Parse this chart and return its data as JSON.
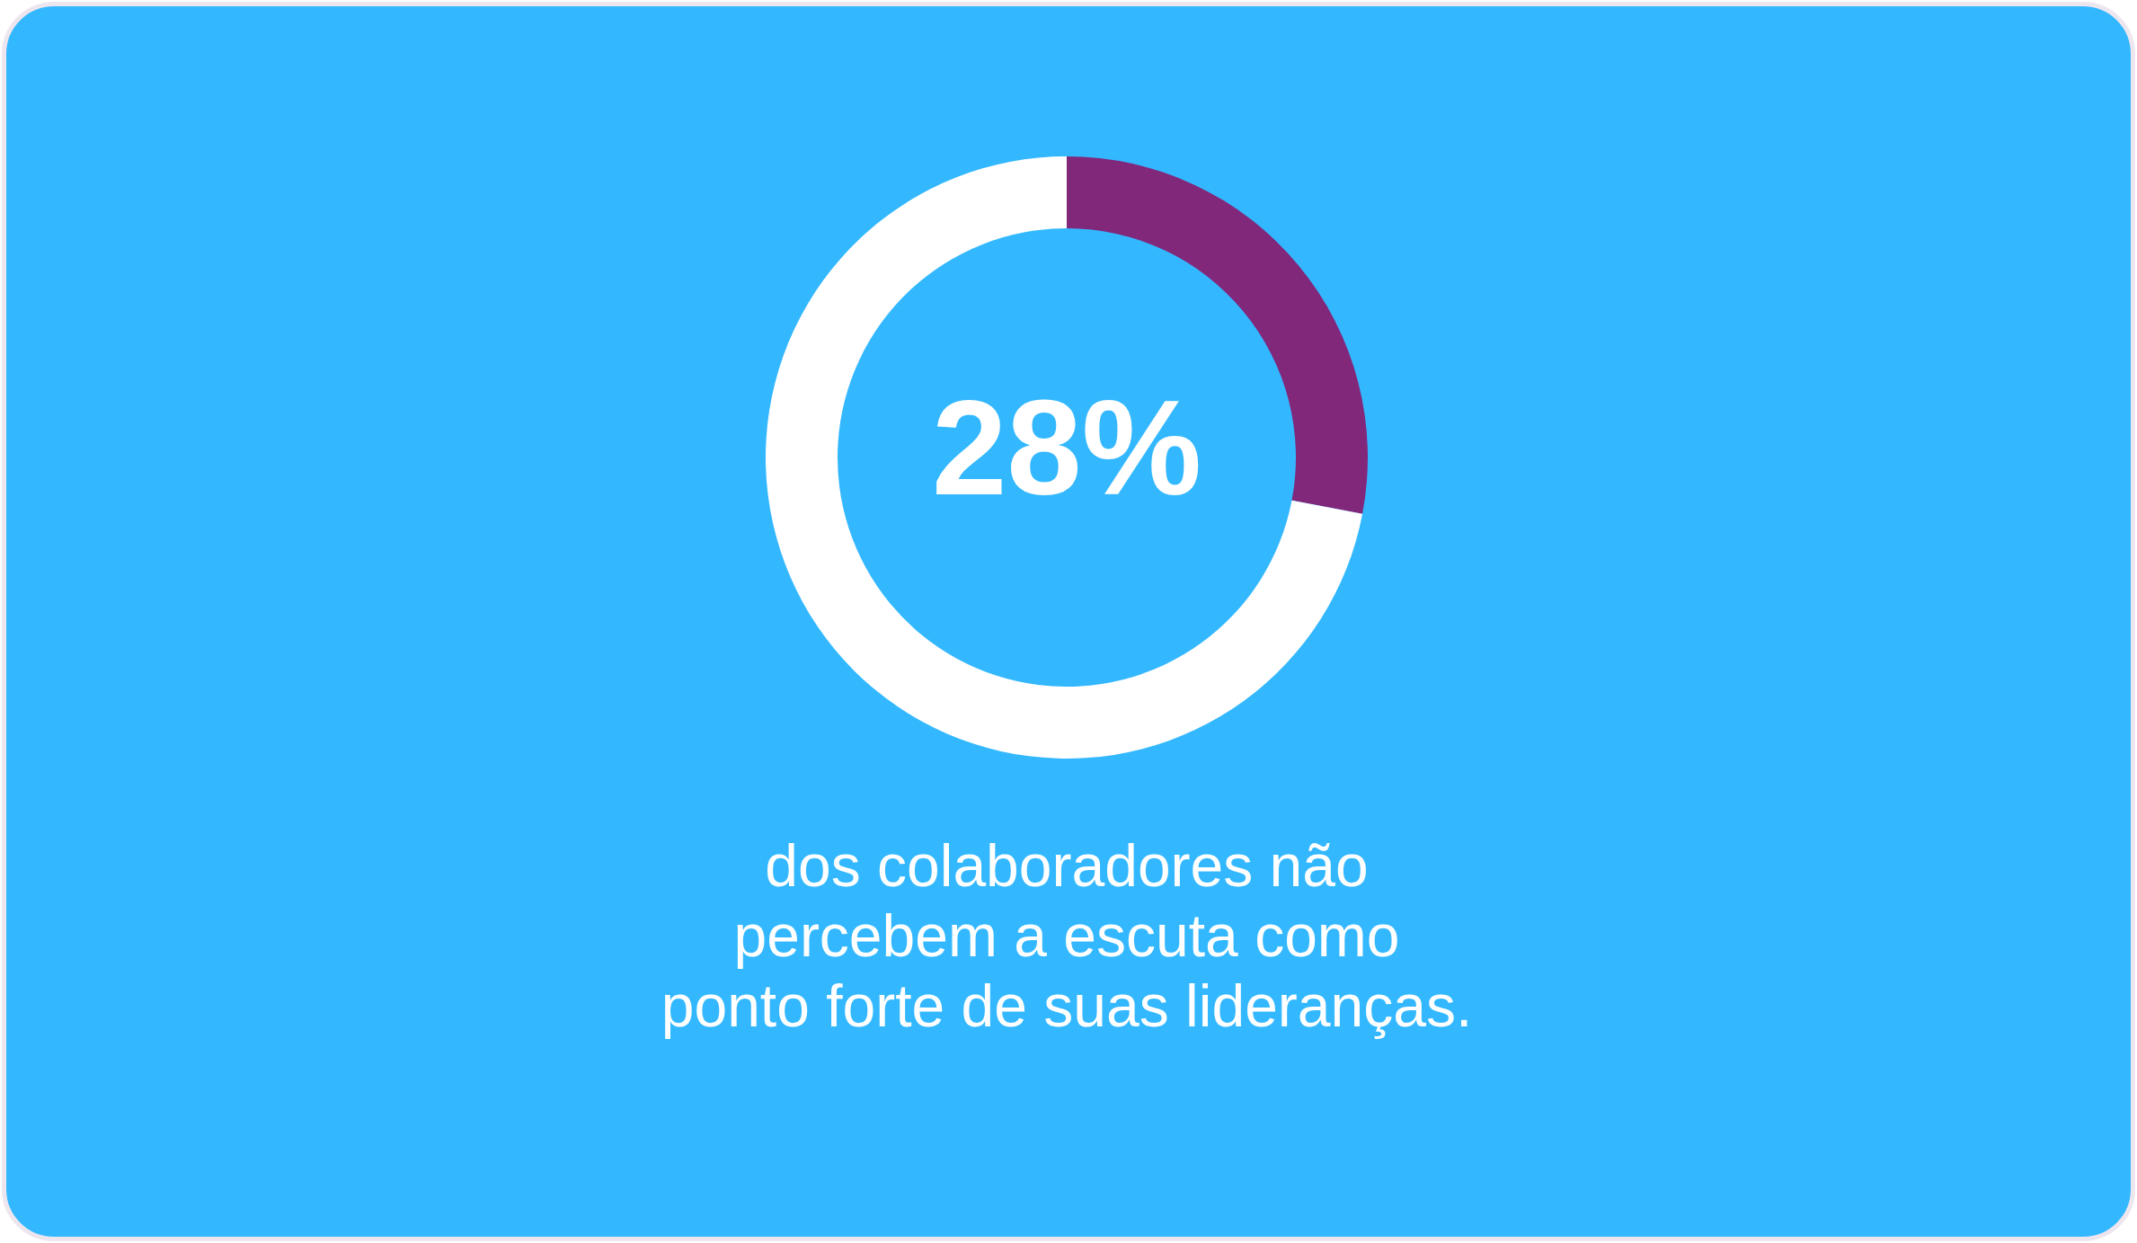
{
  "chart_data": {
    "type": "donut",
    "categories": [
      null,
      null
    ],
    "values": [
      28,
      72
    ],
    "colors": [
      "#82287b",
      "#ffffff"
    ],
    "annotations": [
      "28%",
      "dos colaboradores não\npercebem a escuta como\nponto forte de suas lideranças."
    ]
  }
}
